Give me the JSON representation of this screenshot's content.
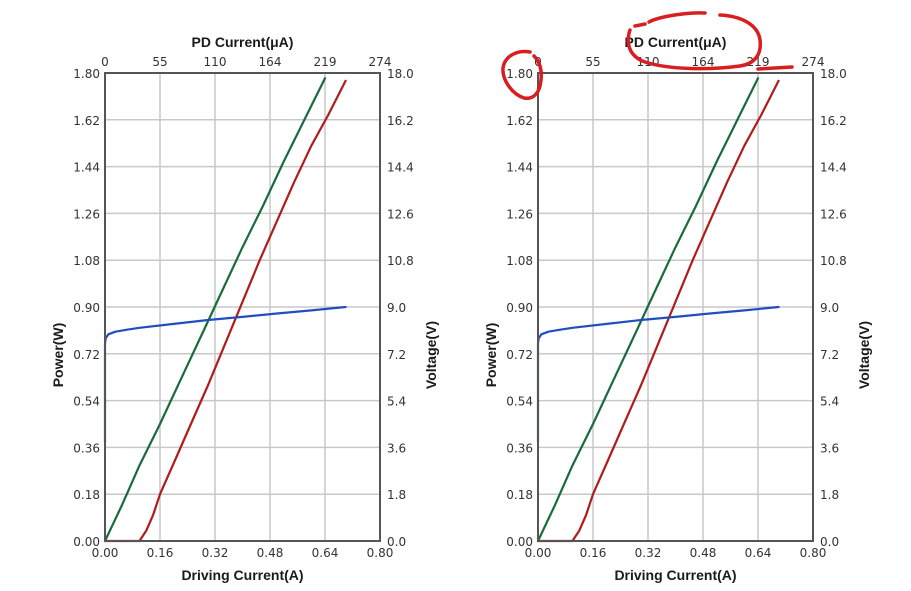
{
  "chart_data": [
    {
      "type": "line",
      "name": "left-chart",
      "top_xlabel": "PD Current(μA)",
      "xlabel": "Driving Current(A)",
      "ylabel": "Power(W)",
      "y2label": "Voltage(V)",
      "xlim": [
        0,
        0.8
      ],
      "ylim": [
        0,
        1.8
      ],
      "y2lim": [
        0,
        18.0
      ],
      "x2lim": [
        0,
        274
      ],
      "grid": true,
      "x_ticks": [
        "0.00",
        "0.16",
        "0.32",
        "0.48",
        "0.64",
        "0.80"
      ],
      "y_ticks": [
        "0.00",
        "0.18",
        "0.36",
        "0.54",
        "0.72",
        "0.90",
        "1.08",
        "1.26",
        "1.44",
        "1.62",
        "1.80"
      ],
      "y2_ticks": [
        "0.0",
        "1.8",
        "3.6",
        "5.4",
        "7.2",
        "9.0",
        "10.8",
        "12.6",
        "14.4",
        "16.2",
        "18.0"
      ],
      "x2_ticks": [
        "0",
        "55",
        "110",
        "164",
        "219",
        "274"
      ],
      "series": [
        {
          "name": "PD Current",
          "color": "#1a6b3c",
          "axis": "x-left",
          "x": [
            0.0,
            0.05,
            0.1,
            0.16,
            0.22,
            0.28,
            0.34,
            0.4,
            0.46,
            0.52,
            0.58,
            0.64
          ],
          "y": [
            0.0,
            0.14,
            0.29,
            0.45,
            0.62,
            0.79,
            0.96,
            1.13,
            1.29,
            1.46,
            1.62,
            1.78
          ]
        },
        {
          "name": "Power",
          "color": "#b01c1c",
          "axis": "x-left",
          "x": [
            0.0,
            0.1,
            0.12,
            0.14,
            0.16,
            0.2,
            0.25,
            0.3,
            0.35,
            0.4,
            0.45,
            0.5,
            0.55,
            0.6,
            0.65,
            0.7
          ],
          "y": [
            0.0,
            0.0,
            0.04,
            0.1,
            0.18,
            0.3,
            0.45,
            0.6,
            0.76,
            0.92,
            1.08,
            1.23,
            1.38,
            1.52,
            1.64,
            1.77
          ]
        },
        {
          "name": "Voltage",
          "color": "#1f4fbf",
          "axis": "y-right",
          "x": [
            0.0,
            0.0,
            0.002,
            0.01,
            0.03,
            0.06,
            0.1,
            0.2,
            0.3,
            0.4,
            0.5,
            0.6,
            0.7
          ],
          "y": [
            3.8,
            7.6,
            7.8,
            7.95,
            8.05,
            8.12,
            8.2,
            8.35,
            8.5,
            8.62,
            8.75,
            8.87,
            9.0
          ]
        }
      ]
    },
    {
      "type": "line",
      "name": "right-chart",
      "top_xlabel": "PD Current(μA)",
      "xlabel": "Driving Current(A)",
      "ylabel": "Power(W)",
      "y2label": "Voltage(V)",
      "xlim": [
        0,
        0.8
      ],
      "ylim": [
        0,
        1.8
      ],
      "y2lim": [
        0,
        18.0
      ],
      "x2lim": [
        0,
        274
      ],
      "grid": true,
      "x_ticks": [
        "0.00",
        "0.16",
        "0.32",
        "0.48",
        "0.64",
        "0.80"
      ],
      "y_ticks": [
        "0.00",
        "0.18",
        "0.36",
        "0.54",
        "0.72",
        "0.90",
        "1.08",
        "1.26",
        "1.44",
        "1.62",
        "1.80"
      ],
      "y2_ticks": [
        "0.0",
        "1.8",
        "3.6",
        "5.4",
        "7.2",
        "9.0",
        "10.8",
        "12.6",
        "14.4",
        "16.2",
        "18.0"
      ],
      "x2_ticks": [
        "0",
        "55",
        "110",
        "164",
        "219",
        "274"
      ],
      "annotations": [
        "red circle around 1.80 tick",
        "red circle around PD Current(μA) title",
        "red underline near 219 tick"
      ],
      "series": [
        {
          "name": "PD Current",
          "color": "#1a6b3c",
          "axis": "x-left",
          "x": [
            0.0,
            0.05,
            0.1,
            0.16,
            0.22,
            0.28,
            0.34,
            0.4,
            0.46,
            0.52,
            0.58,
            0.64
          ],
          "y": [
            0.0,
            0.14,
            0.29,
            0.45,
            0.62,
            0.79,
            0.96,
            1.13,
            1.29,
            1.46,
            1.62,
            1.78
          ]
        },
        {
          "name": "Power",
          "color": "#b01c1c",
          "axis": "x-left",
          "x": [
            0.0,
            0.1,
            0.12,
            0.14,
            0.16,
            0.2,
            0.25,
            0.3,
            0.35,
            0.4,
            0.45,
            0.5,
            0.55,
            0.6,
            0.65,
            0.7
          ],
          "y": [
            0.0,
            0.0,
            0.04,
            0.1,
            0.18,
            0.3,
            0.45,
            0.6,
            0.76,
            0.92,
            1.08,
            1.23,
            1.38,
            1.52,
            1.64,
            1.77
          ]
        },
        {
          "name": "Voltage",
          "color": "#1f4fbf",
          "axis": "y-right",
          "x": [
            0.0,
            0.0,
            0.002,
            0.01,
            0.03,
            0.06,
            0.1,
            0.2,
            0.3,
            0.4,
            0.5,
            0.6,
            0.7
          ],
          "y": [
            3.8,
            7.6,
            7.8,
            7.95,
            8.05,
            8.12,
            8.2,
            8.35,
            8.5,
            8.62,
            8.75,
            8.87,
            9.0
          ]
        }
      ]
    }
  ]
}
